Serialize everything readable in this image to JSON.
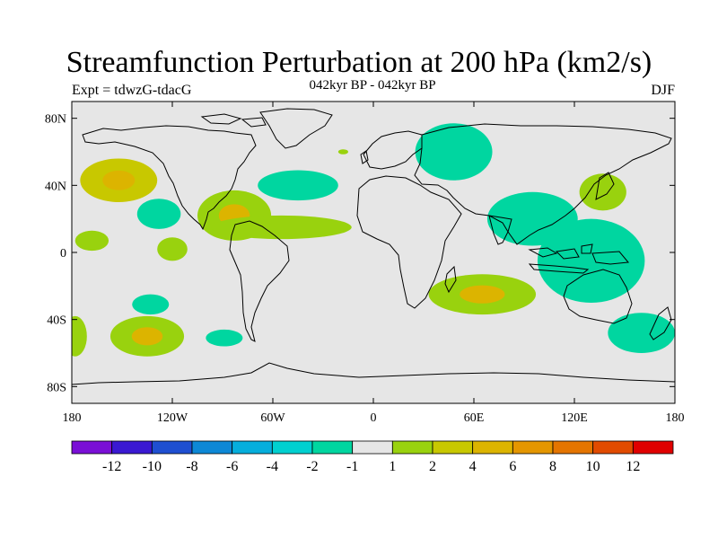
{
  "title": "Streamfunction Perturbation at 200 hPa (km2/s)",
  "subtitle": "042kyr BP - 042kyr BP",
  "left_string": "Expt = tdwzG-tdacG",
  "right_string": "DJF",
  "map": {
    "projection": "cylindrical equidistant",
    "lon_range": [
      -180,
      180
    ],
    "lat_range": [
      -90,
      90
    ],
    "background_color": "#e6e6e6",
    "x_ticks": [
      {
        "lon": -180,
        "label": "180"
      },
      {
        "lon": -120,
        "label": "120W"
      },
      {
        "lon": -60,
        "label": "60W"
      },
      {
        "lon": 0,
        "label": "0"
      },
      {
        "lon": 60,
        "label": "60E"
      },
      {
        "lon": 120,
        "label": "120E"
      },
      {
        "lon": 180,
        "label": "180"
      }
    ],
    "y_ticks": [
      {
        "lat": 80,
        "label": "80N"
      },
      {
        "lat": 40,
        "label": "40N"
      },
      {
        "lat": 0,
        "label": "0"
      },
      {
        "lat": -40,
        "label": "40S"
      },
      {
        "lat": -80,
        "label": "80S"
      }
    ]
  },
  "colorbar": {
    "colors": [
      "#7a0fd6",
      "#3a19d2",
      "#1f4fd1",
      "#0d88d6",
      "#06aedc",
      "#00d0d0",
      "#00d6a0",
      "#e6e6e6",
      "#99d20e",
      "#c8c800",
      "#dcb400",
      "#e49600",
      "#e47500",
      "#e14b00",
      "#e00000"
    ],
    "labels": [
      "-12",
      "-10",
      "-8",
      "-6",
      "-4",
      "-2",
      "-1",
      "1",
      "2",
      "4",
      "6",
      "8",
      "10",
      "12"
    ]
  },
  "chart_data": {
    "type": "map-filled-contour",
    "title": "Streamfunction Perturbation at 200 hPa (km2/s)",
    "subtitle": "042kyr BP - 042kyr BP",
    "season": "DJF",
    "experiment": "Expt = tdwzG-tdacG",
    "contour_levels": [
      -12,
      -10,
      -8,
      -6,
      -4,
      -2,
      -1,
      1,
      2,
      4,
      6,
      8,
      10,
      12
    ],
    "anomaly_regions": [
      {
        "lon": -152,
        "lat": 43,
        "rx": 23,
        "ry": 13,
        "level": 2,
        "peak": 4
      },
      {
        "lon": -168,
        "lat": 7,
        "rx": 10,
        "ry": 6,
        "level": 1
      },
      {
        "lon": -128,
        "lat": 23,
        "rx": 13,
        "ry": 9,
        "level": -2
      },
      {
        "lon": -120,
        "lat": 2,
        "rx": 9,
        "ry": 7,
        "level": 1
      },
      {
        "lon": -83,
        "lat": 22,
        "rx": 22,
        "ry": 15,
        "level": 1,
        "peak": 4
      },
      {
        "lon": -55,
        "lat": 15,
        "rx": 42,
        "ry": 7,
        "level": 1
      },
      {
        "lon": -45,
        "lat": 40,
        "rx": 24,
        "ry": 9,
        "level": -2
      },
      {
        "lon": -18,
        "lat": 60,
        "rx": 3,
        "ry": 1.5,
        "level": 1
      },
      {
        "lon": -133,
        "lat": -31,
        "rx": 11,
        "ry": 6,
        "level": -2
      },
      {
        "lon": -135,
        "lat": -50,
        "rx": 22,
        "ry": 12,
        "level": 1,
        "peak": 4
      },
      {
        "lon": -178,
        "lat": -50,
        "rx": 7,
        "ry": 12,
        "level": 1
      },
      {
        "lon": -89,
        "lat": -51,
        "rx": 11,
        "ry": 5,
        "level": -2
      },
      {
        "lon": 48,
        "lat": 60,
        "rx": 23,
        "ry": 17,
        "level": -2
      },
      {
        "lon": 95,
        "lat": 20,
        "rx": 27,
        "ry": 16,
        "level": -2
      },
      {
        "lon": 130,
        "lat": -5,
        "rx": 32,
        "ry": 25,
        "level": -2
      },
      {
        "lon": 137,
        "lat": 36,
        "rx": 14,
        "ry": 11,
        "level": 1
      },
      {
        "lon": 65,
        "lat": -25,
        "rx": 32,
        "ry": 12,
        "level": 1,
        "peak": 4
      },
      {
        "lon": 160,
        "lat": -48,
        "rx": 20,
        "ry": 12,
        "level": -2
      }
    ]
  }
}
